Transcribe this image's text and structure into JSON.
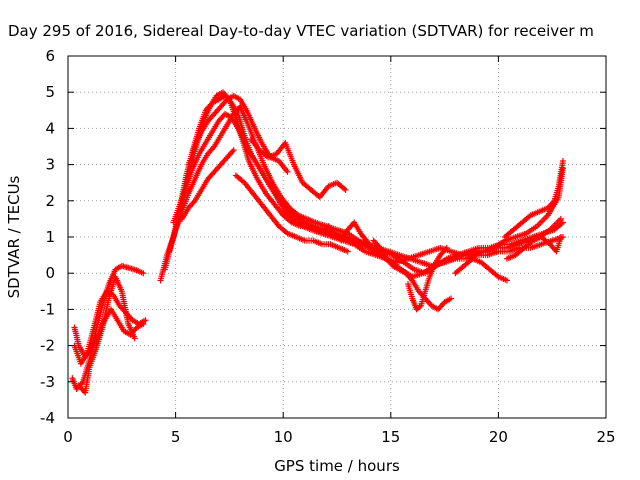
{
  "chart_data": {
    "type": "scatter",
    "title": "Day 295 of 2016, Sidereal Day-to-day VTEC variation (SDTVAR) for receiver m",
    "xlabel": "GPS time / hours",
    "ylabel": "SDTVAR / TECUs",
    "xlim": [
      0,
      25
    ],
    "ylim": [
      -4,
      6
    ],
    "x_ticks": [
      "0",
      "5",
      "10",
      "15",
      "20",
      "25"
    ],
    "y_ticks": [
      "-4",
      "-3",
      "-2",
      "-1",
      "0",
      "1",
      "2",
      "3",
      "4",
      "5",
      "6"
    ],
    "grid": true,
    "legend": "none",
    "marker": "+",
    "series_color": "#ff0000",
    "traces": [
      {
        "x": [
          0.2,
          0.4,
          0.7,
          1.0,
          1.3,
          1.6,
          1.9,
          2.2,
          2.5,
          2.8,
          3.1,
          3.5
        ],
        "y": [
          -2.9,
          -3.2,
          -3.0,
          -2.4,
          -1.6,
          -0.9,
          -0.3,
          0.1,
          0.2,
          0.15,
          0.1,
          0.0
        ]
      },
      {
        "x": [
          0.3,
          0.5,
          0.8,
          1.1,
          1.4,
          1.7,
          2.0,
          2.3,
          2.6,
          2.9,
          3.2,
          3.5
        ],
        "y": [
          -1.5,
          -2.0,
          -2.3,
          -2.1,
          -1.7,
          -1.3,
          -1.0,
          -1.3,
          -1.6,
          -1.7,
          -1.5,
          -1.4
        ]
      },
      {
        "x": [
          0.3,
          0.6,
          0.9,
          1.2,
          1.5,
          1.8,
          2.1,
          2.4,
          2.7,
          3.0,
          3.3,
          3.6
        ],
        "y": [
          -2.0,
          -2.5,
          -2.2,
          -1.5,
          -0.8,
          -0.5,
          -0.6,
          -0.9,
          -1.1,
          -1.3,
          -1.4,
          -1.3
        ]
      },
      {
        "x": [
          0.5,
          0.8,
          1.0,
          1.3,
          1.6,
          1.9,
          2.2,
          2.5,
          2.8,
          3.1
        ],
        "y": [
          -3.1,
          -3.3,
          -2.6,
          -2.1,
          -1.5,
          -0.7,
          -0.1,
          -0.5,
          -1.4,
          -1.8
        ]
      },
      {
        "x": [
          4.3,
          4.6,
          4.9,
          5.2,
          5.5,
          5.8,
          6.1,
          6.4,
          6.7,
          7.0,
          7.3,
          7.6,
          7.9,
          8.2,
          8.5,
          8.9,
          9.3,
          9.7,
          10.1,
          10.5,
          10.9,
          11.3,
          11.8,
          12.3,
          12.8,
          13.3,
          13.8,
          14.3,
          14.8,
          15.3,
          15.8,
          16.3,
          16.8,
          17.3,
          17.8,
          18.3,
          18.8,
          19.3,
          19.8,
          20.3,
          20.8,
          21.3,
          21.8,
          22.3,
          22.8,
          23.0
        ],
        "y": [
          -0.2,
          0.5,
          1.0,
          1.8,
          2.7,
          3.4,
          4.0,
          4.5,
          4.7,
          4.8,
          4.9,
          4.7,
          4.4,
          3.8,
          3.3,
          2.9,
          2.5,
          2.1,
          1.7,
          1.5,
          1.3,
          1.2,
          1.1,
          1.0,
          0.9,
          0.8,
          0.6,
          0.5,
          0.4,
          0.3,
          0.4,
          0.5,
          0.6,
          0.7,
          0.6,
          0.5,
          0.5,
          0.6,
          0.7,
          0.9,
          1.0,
          1.1,
          1.3,
          1.6,
          2.1,
          2.9
        ]
      },
      {
        "x": [
          4.5,
          4.8,
          5.1,
          5.4,
          5.7,
          6.0,
          6.3,
          6.6,
          6.9,
          7.2,
          7.5,
          7.8,
          8.1,
          8.4,
          8.8,
          9.2,
          9.6,
          10.0,
          10.4,
          10.8,
          11.2,
          11.6,
          12.1,
          12.6,
          13.1,
          13.6,
          14.1,
          14.6,
          15.1,
          15.6,
          16.1,
          16.6,
          17.1,
          17.6,
          18.1,
          18.6,
          19.1,
          19.6,
          20.1,
          20.6,
          21.1,
          21.6,
          22.1,
          22.6,
          23.0
        ],
        "y": [
          0.1,
          0.8,
          1.4,
          2.1,
          2.9,
          3.6,
          4.2,
          4.6,
          4.9,
          5.0,
          4.8,
          4.3,
          3.7,
          3.1,
          2.6,
          2.2,
          1.9,
          1.6,
          1.4,
          1.3,
          1.3,
          1.2,
          1.1,
          1.0,
          0.9,
          0.8,
          0.7,
          0.6,
          0.5,
          0.3,
          0.1,
          0.0,
          0.2,
          0.4,
          0.5,
          0.6,
          0.7,
          0.7,
          0.8,
          0.8,
          0.9,
          1.0,
          1.1,
          1.2,
          1.4
        ]
      },
      {
        "x": [
          4.7,
          5.0,
          5.3,
          5.6,
          5.9,
          6.2,
          6.5,
          6.8,
          7.1,
          7.4,
          7.7,
          8.0,
          8.3,
          8.7,
          9.1,
          9.5,
          9.9,
          10.3,
          10.7,
          11.1,
          11.5,
          12.0,
          12.5,
          13.0,
          13.5,
          14.0,
          14.5,
          15.0,
          15.5,
          16.0,
          16.5,
          17.0,
          17.5,
          18.0,
          18.5,
          19.0,
          19.5,
          20.0,
          20.5,
          21.0,
          21.5,
          22.0,
          22.5,
          23.0
        ],
        "y": [
          0.6,
          1.2,
          1.7,
          2.2,
          2.6,
          3.0,
          3.3,
          3.5,
          3.8,
          4.1,
          4.4,
          4.6,
          4.2,
          3.6,
          3.0,
          2.5,
          2.1,
          1.8,
          1.6,
          1.5,
          1.4,
          1.3,
          1.2,
          1.1,
          0.9,
          0.7,
          0.5,
          0.3,
          0.1,
          -0.1,
          0.0,
          0.2,
          0.3,
          0.4,
          0.4,
          0.5,
          0.5,
          0.6,
          0.6,
          0.7,
          0.7,
          0.8,
          0.9,
          1.0
        ]
      },
      {
        "x": [
          4.9,
          5.2,
          5.5,
          5.8,
          6.1,
          6.4,
          6.7,
          7.0,
          7.3,
          7.6,
          7.9,
          8.2,
          8.6,
          9.0,
          9.4,
          9.8,
          10.2,
          10.6,
          11.0,
          11.4,
          11.9,
          12.4,
          12.9,
          13.4,
          13.9,
          14.4,
          14.9,
          15.4,
          15.9,
          16.4,
          16.9,
          17.4,
          17.9,
          18.4,
          18.9,
          19.4,
          19.9,
          20.4,
          20.9,
          21.4,
          21.9,
          22.4,
          22.9
        ],
        "y": [
          1.4,
          1.9,
          2.4,
          2.9,
          3.3,
          3.6,
          3.9,
          4.2,
          4.4,
          4.3,
          4.0,
          3.6,
          3.2,
          2.8,
          2.4,
          2.1,
          1.8,
          1.6,
          1.4,
          1.3,
          1.2,
          1.1,
          1.0,
          0.9,
          0.8,
          0.7,
          0.6,
          0.5,
          0.4,
          0.3,
          0.2,
          0.3,
          0.4,
          0.5,
          0.6,
          0.6,
          0.7,
          0.7,
          0.8,
          0.9,
          1.0,
          1.2,
          1.5
        ]
      },
      {
        "x": [
          5.6,
          5.9,
          6.2,
          6.5,
          6.8,
          7.1,
          7.4,
          7.7,
          8.0,
          8.3,
          8.6,
          9.0,
          9.4,
          9.8,
          10.2
        ],
        "y": [
          3.0,
          3.5,
          3.9,
          4.2,
          4.4,
          4.6,
          4.8,
          4.9,
          4.8,
          4.5,
          4.1,
          3.6,
          3.2,
          3.1,
          2.8
        ]
      },
      {
        "x": [
          5.3,
          5.6,
          5.9,
          6.2,
          6.5,
          6.8,
          7.1,
          7.4,
          7.7
        ],
        "y": [
          1.5,
          1.8,
          2.0,
          2.3,
          2.6,
          2.8,
          3.0,
          3.2,
          3.4
        ]
      },
      {
        "x": [
          7.8,
          8.2,
          8.6,
          9.0,
          9.4,
          9.8,
          10.2,
          10.6,
          11.0,
          11.4,
          11.8,
          12.2,
          12.6,
          13.0
        ],
        "y": [
          2.7,
          2.5,
          2.2,
          1.9,
          1.6,
          1.3,
          1.1,
          1.0,
          0.9,
          0.9,
          0.8,
          0.8,
          0.7,
          0.6
        ]
      },
      {
        "x": [
          8.5,
          8.9,
          9.3,
          9.7,
          10.1,
          10.5,
          10.9,
          11.3,
          11.7,
          12.1,
          12.5,
          12.9
        ],
        "y": [
          3.7,
          3.4,
          3.2,
          3.3,
          3.6,
          3.0,
          2.5,
          2.3,
          2.1,
          2.4,
          2.5,
          2.3
        ]
      },
      {
        "x": [
          11.8,
          12.1,
          12.4,
          12.7,
          13.0,
          13.3,
          13.6,
          14.0,
          14.4
        ],
        "y": [
          1.1,
          1.3,
          1.1,
          0.9,
          1.2,
          1.4,
          1.1,
          0.8,
          0.6
        ]
      },
      {
        "x": [
          14.2,
          14.5,
          14.8,
          15.1,
          15.4,
          15.7,
          16.0,
          16.3,
          16.6,
          16.9,
          17.2,
          17.5,
          17.8
        ],
        "y": [
          0.9,
          0.7,
          0.4,
          0.2,
          0.1,
          0.0,
          -0.2,
          -0.5,
          -0.7,
          -0.9,
          -1.0,
          -0.8,
          -0.7
        ]
      },
      {
        "x": [
          15.8,
          16.0,
          16.2,
          16.4,
          16.6,
          16.8,
          17.0,
          17.3,
          17.6
        ],
        "y": [
          -0.3,
          -0.7,
          -1.0,
          -0.9,
          -0.5,
          -0.1,
          0.2,
          0.5,
          0.7
        ]
      },
      {
        "x": [
          18.0,
          18.4,
          18.8,
          19.2,
          19.6,
          20.0,
          20.4
        ],
        "y": [
          0.0,
          0.2,
          0.4,
          0.3,
          0.1,
          -0.1,
          -0.2
        ]
      },
      {
        "x": [
          20.3,
          20.7,
          21.1,
          21.5,
          21.9,
          22.3,
          22.6,
          22.8,
          23.0
        ],
        "y": [
          1.0,
          1.2,
          1.4,
          1.6,
          1.7,
          1.8,
          2.0,
          2.4,
          3.1
        ]
      },
      {
        "x": [
          20.4,
          20.8,
          21.2,
          21.6,
          22.0,
          22.4,
          22.7,
          22.9
        ],
        "y": [
          0.4,
          0.5,
          0.7,
          0.9,
          1.0,
          0.8,
          0.6,
          1.0
        ]
      }
    ]
  }
}
